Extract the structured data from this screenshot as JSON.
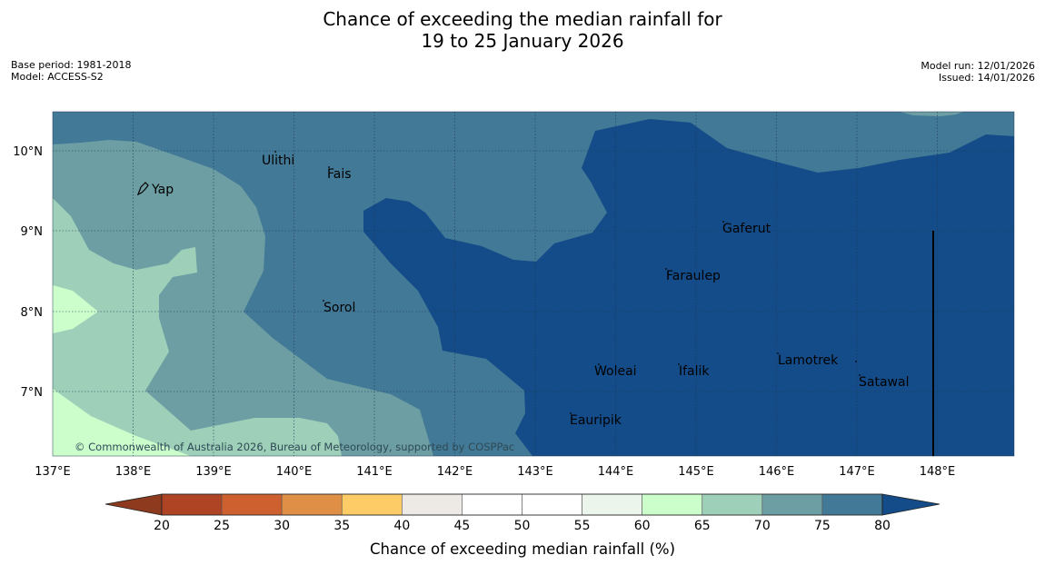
{
  "title": {
    "line1": "Chance of exceeding the median rainfall for",
    "line2": "19 to 25 January 2026"
  },
  "meta_left": {
    "base_period": "Base period: 1981-2018",
    "model": "Model: ACCESS-S2"
  },
  "meta_right": {
    "model_run": "Model run: 12/01/2026",
    "issued": "Issued: 14/01/2026"
  },
  "map": {
    "x_ticks": [
      "137°E",
      "138°E",
      "139°E",
      "140°E",
      "141°E",
      "142°E",
      "143°E",
      "144°E",
      "145°E",
      "146°E",
      "147°E",
      "148°E"
    ],
    "y_ticks": [
      "10°N",
      "9°N",
      "8°N",
      "7°N"
    ],
    "places": [
      "Yap",
      "Ulithi",
      "Fais",
      "Sorol",
      "Gaferut",
      "Faraulep",
      "Woleai",
      "Ifalik",
      "Lamotrek",
      "Satawal",
      "Eauripik"
    ],
    "copyright": "© Commonwealth of Australia 2026, Bureau of Meteorology, supported by COSPPac"
  },
  "colorbar": {
    "tick_labels": [
      "20",
      "25",
      "30",
      "35",
      "40",
      "45",
      "50",
      "55",
      "60",
      "65",
      "70",
      "75",
      "80"
    ],
    "label": "Chance of exceeding median rainfall (%)",
    "colors": [
      "#ae4423",
      "#ce6030",
      "#e09046",
      "#fecc67",
      "#ede9e4",
      "#ffffff",
      "#ffffff",
      "#ebf5eb",
      "#ccfecc",
      "#9ecfb9",
      "#6c9ea3",
      "#427996"
    ],
    "under_color": "#8e3a1f",
    "over_color": "#134c88"
  },
  "colors": {
    "band_60_65": "#ccfecc",
    "band_65_70": "#9ecfb9",
    "band_70_75": "#6c9ea3",
    "band_75_80": "#427996",
    "band_above_80": "#134c88"
  }
}
